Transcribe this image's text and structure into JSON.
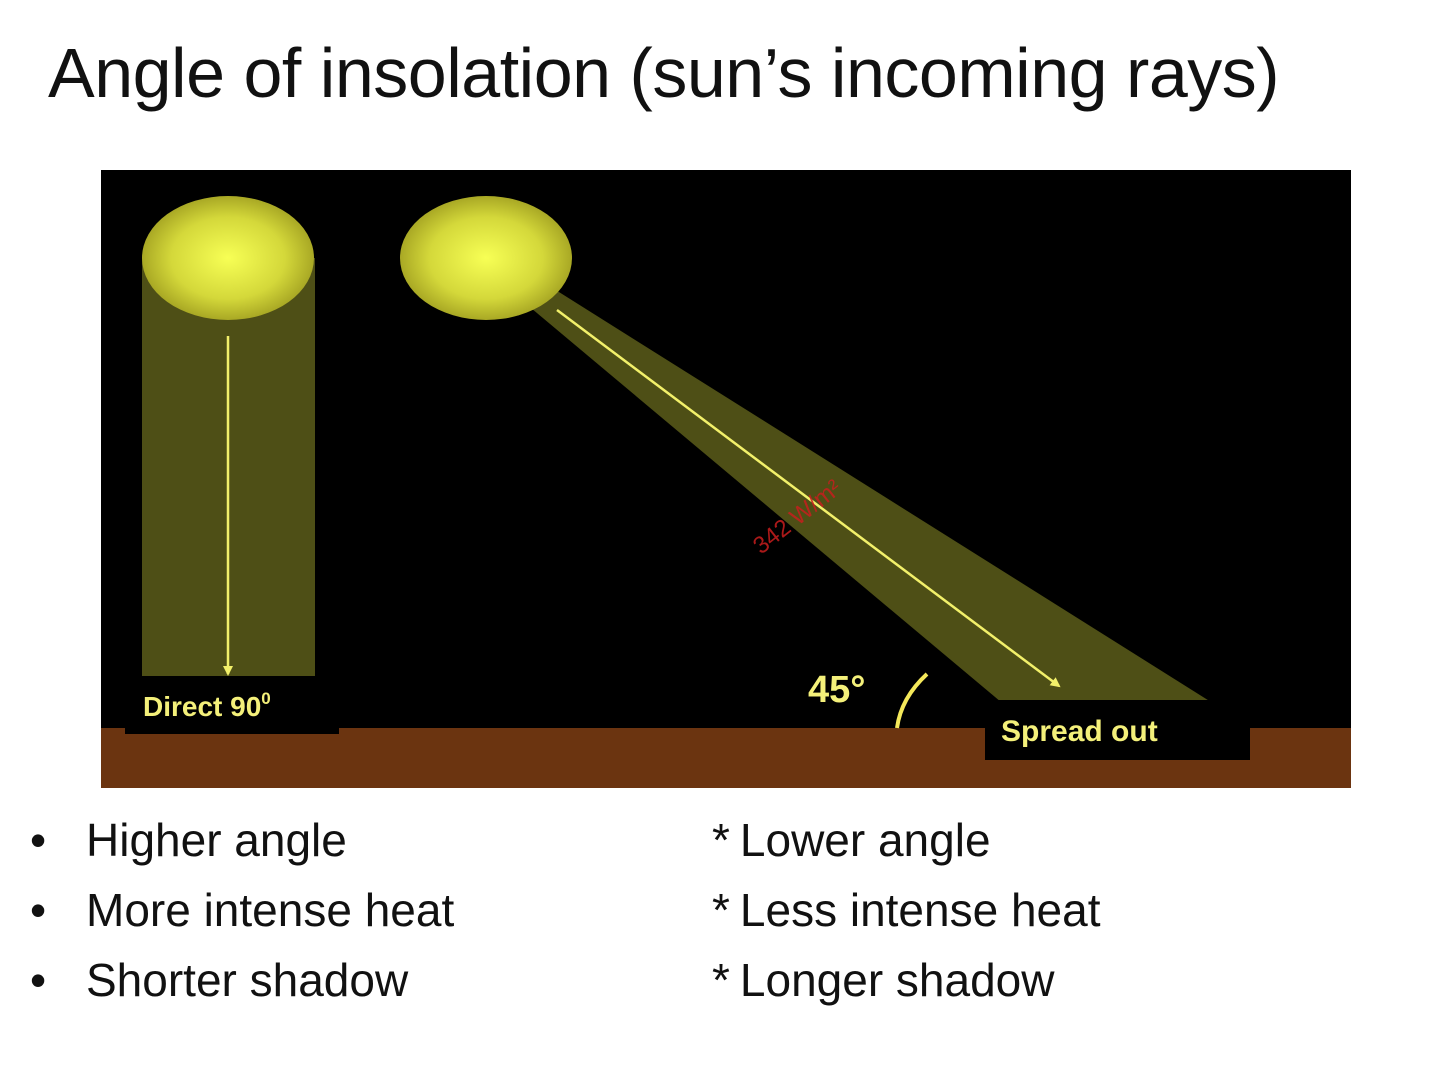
{
  "title": "Angle of insolation (sun’s incoming rays)",
  "diagram": {
    "direct_label": "Direct 90",
    "direct_sup": "0",
    "angle_label": "45°",
    "angle_degrees": 45,
    "spread_label": "Spread out",
    "ray_label": "342 W/m²",
    "colors": {
      "space": "#000000",
      "ground": "#6b3410",
      "beam": "#4e4f16",
      "sun_center": "#f7ff55",
      "sun_edge": "#9c9a1e",
      "arrow": "#f2f06a",
      "label": "#f4f07a",
      "ray_label": "#c81e1e"
    }
  },
  "left_list": {
    "marker": "•",
    "items": [
      "Higher angle",
      "More intense heat",
      "Shorter shadow"
    ]
  },
  "right_list": {
    "marker": "*",
    "items": [
      "Lower angle",
      "Less intense heat",
      "Longer shadow"
    ]
  }
}
